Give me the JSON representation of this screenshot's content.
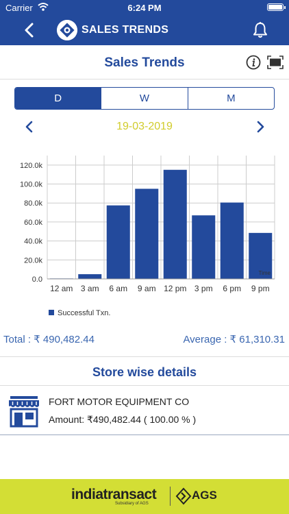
{
  "status_bar": {
    "carrier": "Carrier",
    "time": "6:24 PM"
  },
  "nav": {
    "title": "SALES TRENDS"
  },
  "page": {
    "heading": "Sales Trends"
  },
  "tabs": [
    {
      "label": "D",
      "active": true
    },
    {
      "label": "W",
      "active": false
    },
    {
      "label": "M",
      "active": false
    }
  ],
  "date_nav": {
    "date": "19-03-2019"
  },
  "chart_data": {
    "type": "bar",
    "categories": [
      "12 am",
      "3 am",
      "6 am",
      "9 am",
      "12 pm",
      "3 pm",
      "6 pm",
      "9 pm"
    ],
    "series": [
      {
        "name": "Successful Txn.",
        "values": [
          500,
          5000,
          77500,
          95000,
          115000,
          67000,
          80500,
          48500
        ],
        "color": "#234a9c"
      }
    ],
    "y_ticks": [
      "0.0",
      "20.0k",
      "40.0k",
      "60.0k",
      "80.0k",
      "100.0k",
      "120.0k"
    ],
    "xlabel": "Time",
    "ylim": [
      0,
      130000
    ],
    "grid": true,
    "legend": "bottom-left"
  },
  "summary": {
    "total": "Total : ₹ 490,482.44",
    "average": "Average : ₹ 61,310.31"
  },
  "store_section": {
    "heading": "Store wise details"
  },
  "stores": [
    {
      "name": "FORT MOTOR EQUIPMENT CO",
      "amount": "Amount: ₹490,482.44 ( 100.00 % )"
    }
  ],
  "footer": {
    "brand": "indiatransact",
    "subtitle": "Subsidiary of AGS",
    "partner": "AGS"
  },
  "colors": {
    "primary": "#234a9c",
    "accent_date": "#d1cc2b",
    "footer": "#d3de35",
    "text_blue": "#3a66b0"
  }
}
